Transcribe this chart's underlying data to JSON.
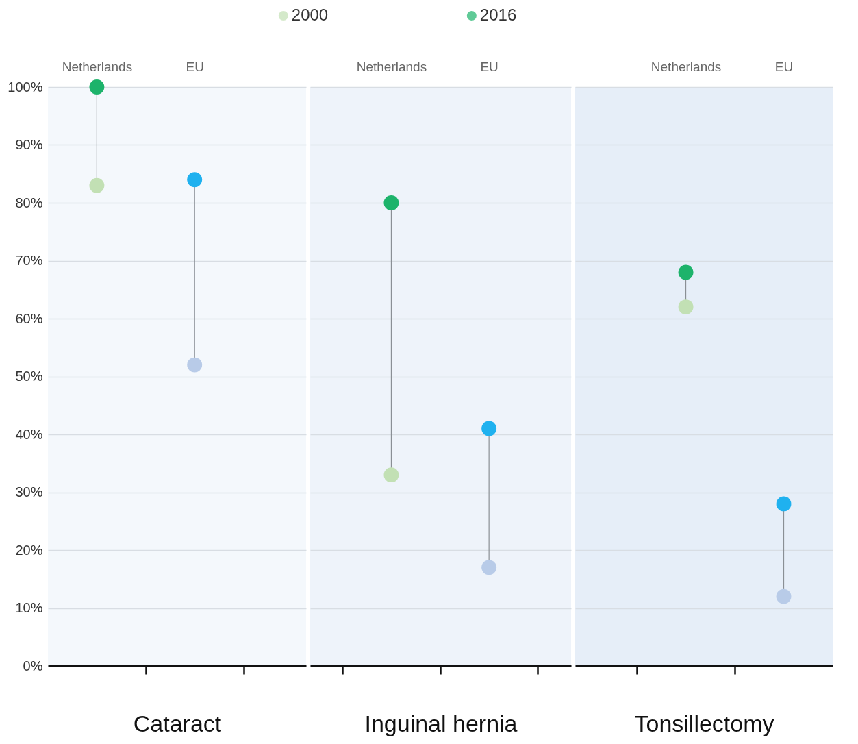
{
  "chart_data": [
    {
      "type": "scatter",
      "categories": [
        "Netherlands",
        "EU"
      ],
      "xlabel": "Cataract",
      "legend": "top",
      "marker": "circle",
      "grid": "y",
      "ylim": [
        0,
        100
      ],
      "yticks": [
        {
          "value": 0,
          "label": "0%"
        },
        {
          "value": 10,
          "label": "10%"
        },
        {
          "value": 20,
          "label": "20%"
        },
        {
          "value": 30,
          "label": "30%"
        },
        {
          "value": 40,
          "label": "40%"
        },
        {
          "value": 50,
          "label": "50%"
        },
        {
          "value": 60,
          "label": "60%"
        },
        {
          "value": 70,
          "label": "70%"
        },
        {
          "value": 80,
          "label": "80%"
        },
        {
          "value": 90,
          "label": "90%"
        },
        {
          "value": 100,
          "label": "100%"
        }
      ],
      "series": [
        {
          "name": "2000",
          "color": "#c2e0b4",
          "colors": [
            "#c2e0b4",
            "#b8cbe8"
          ],
          "values": [
            83,
            52
          ]
        },
        {
          "name": "2016",
          "color": "#1db36b",
          "colors": [
            "#1db36b",
            "#1fb1ef"
          ],
          "values": [
            100,
            84
          ]
        }
      ]
    },
    {
      "type": "scatter",
      "categories": [
        "Netherlands",
        "EU"
      ],
      "xlabel": "Inguinal hernia",
      "marker": "circle",
      "grid": "y",
      "tick_labels": "x",
      "ylim": [
        0,
        100
      ],
      "yticks": [
        0,
        10,
        20,
        30,
        40,
        50,
        60,
        70,
        80,
        90,
        100
      ],
      "series": [
        {
          "colors": [
            "#c2e0b4",
            "#b8cbe8"
          ],
          "values": [
            33,
            17
          ]
        },
        {
          "colors": [
            "#1db36b",
            "#1fb1ef"
          ],
          "values": [
            80,
            41
          ]
        }
      ]
    },
    {
      "type": "scatter",
      "categories": [
        "Netherlands",
        "EU"
      ],
      "xlabel": "Tonsillectomy",
      "marker": "circle",
      "grid": "y",
      "tick_labels": "x",
      "ylim": [
        0,
        100
      ],
      "yticks": [
        0,
        10,
        20,
        30,
        40,
        50,
        60,
        70,
        80,
        90,
        100
      ],
      "series": [
        {
          "colors": [
            "#c2e0b4",
            "#b8cbe8"
          ],
          "values": [
            62,
            12
          ]
        },
        {
          "colors": [
            "#1db36b",
            "#1fb1ef"
          ],
          "values": [
            68,
            28
          ]
        }
      ]
    }
  ]
}
